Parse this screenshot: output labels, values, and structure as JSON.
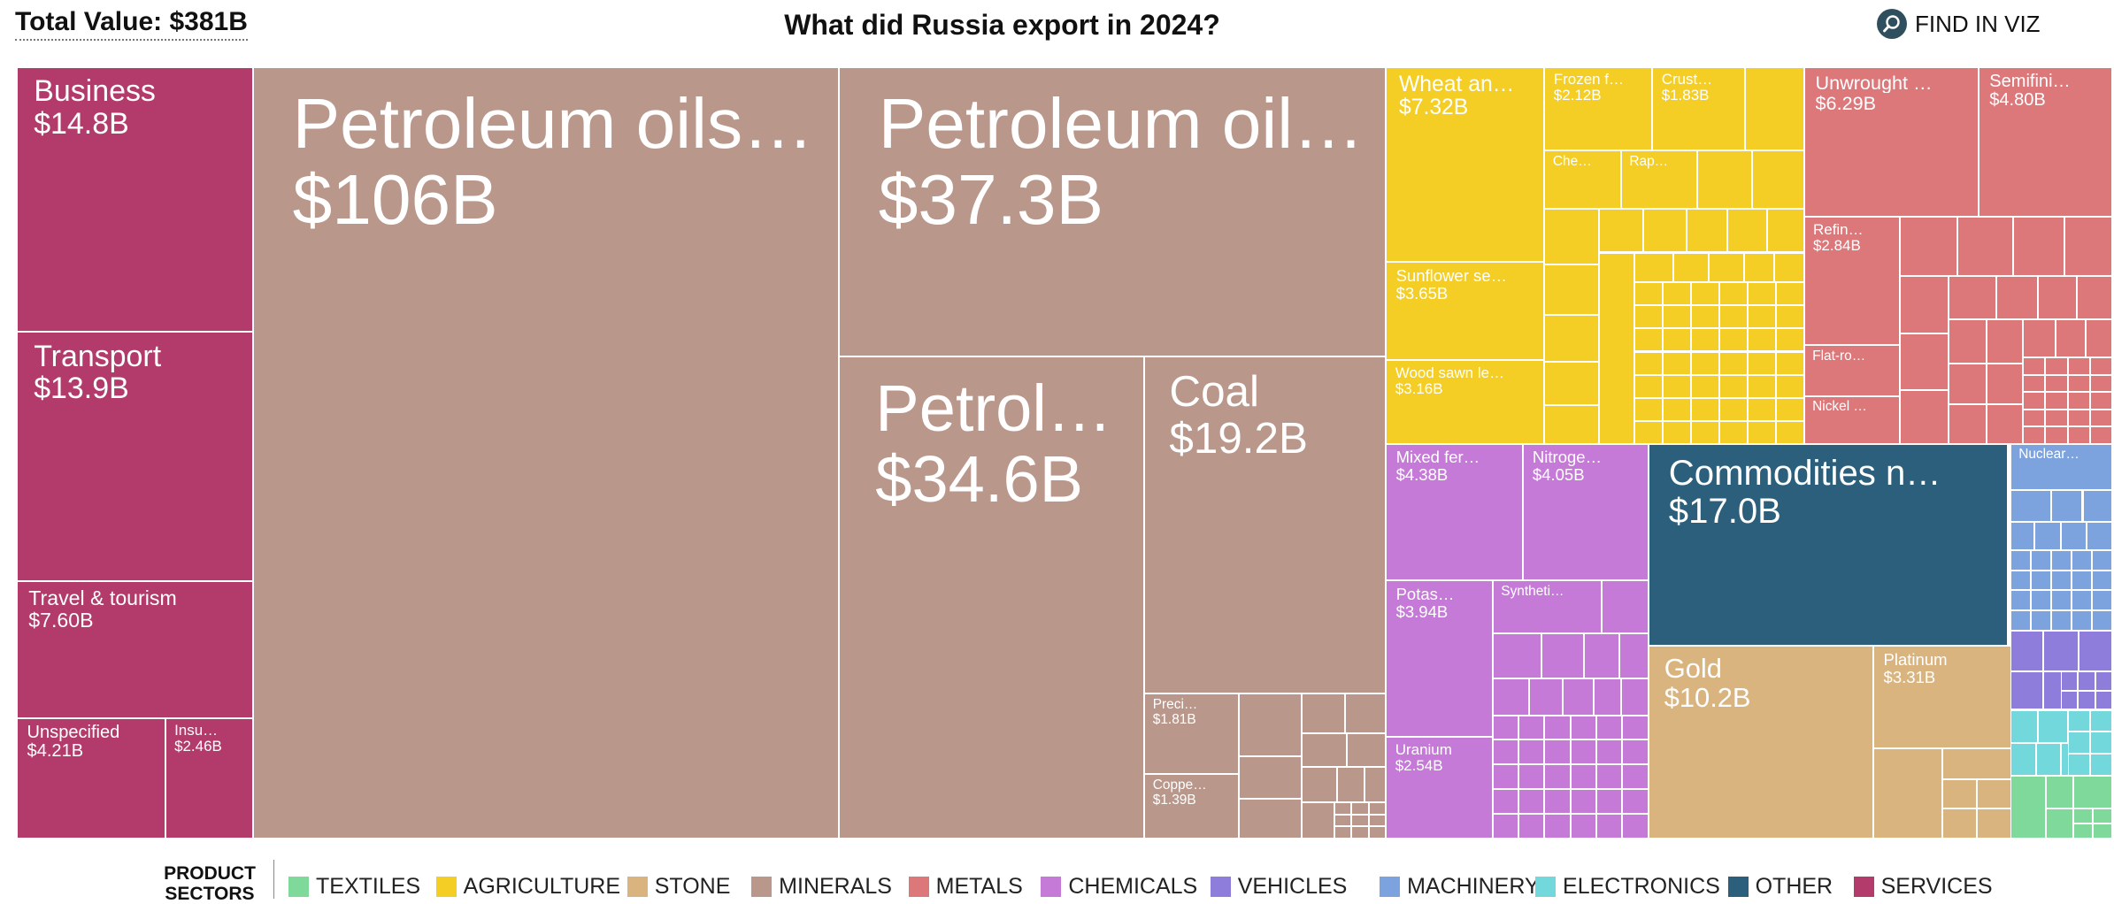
{
  "header": {
    "total_value": "Total Value: $381B",
    "title": "What did Russia export in 2024?",
    "find_in_viz": "FIND IN VIZ",
    "find_icon": "search-icon"
  },
  "legend": {
    "title": "PRODUCT SECTORS",
    "items": [
      {
        "label": "TEXTILES",
        "color": "#7fd99a"
      },
      {
        "label": "AGRICULTURE",
        "color": "#f4ce24"
      },
      {
        "label": "STONE",
        "color": "#d9b47e"
      },
      {
        "label": "MINERALS",
        "color": "#b9978b"
      },
      {
        "label": "METALS",
        "color": "#dc777a"
      },
      {
        "label": "CHEMICALS",
        "color": "#c47ad6"
      },
      {
        "label": "VEHICLES",
        "color": "#8e7ddb"
      },
      {
        "label": "MACHINERY",
        "color": "#7ca3dd"
      },
      {
        "label": "ELECTRONICS",
        "color": "#73d8dc"
      },
      {
        "label": "OTHER",
        "color": "#2b5f7c"
      },
      {
        "label": "SERVICES",
        "color": "#b23b6b"
      }
    ]
  },
  "chart_data": {
    "type": "treemap",
    "title": "What did Russia export in 2024?",
    "total": "$381B",
    "labeled_items": [
      {
        "name": "Business",
        "value": "$14.8B",
        "sector": "SERVICES"
      },
      {
        "name": "Transport",
        "value": "$13.9B",
        "sector": "SERVICES"
      },
      {
        "name": "Travel & tourism",
        "value": "$7.60B",
        "sector": "SERVICES"
      },
      {
        "name": "Unspecified",
        "value": "$4.21B",
        "sector": "SERVICES"
      },
      {
        "name": "Insu…",
        "value": "$2.46B",
        "sector": "SERVICES"
      },
      {
        "name": "Petroleum oils…",
        "value": "$106B",
        "sector": "MINERALS"
      },
      {
        "name": "Petroleum oil…",
        "value": "$37.3B",
        "sector": "MINERALS"
      },
      {
        "name": "Petrol…",
        "value": "$34.6B",
        "sector": "MINERALS"
      },
      {
        "name": "Coal",
        "value": "$19.2B",
        "sector": "MINERALS"
      },
      {
        "name": "Preci…",
        "value": "$1.81B",
        "sector": "MINERALS"
      },
      {
        "name": "Coppe…",
        "value": "$1.39B",
        "sector": "MINERALS"
      },
      {
        "name": "Wheat an…",
        "value": "$7.32B",
        "sector": "AGRICULTURE"
      },
      {
        "name": "Frozen f…",
        "value": "$2.12B",
        "sector": "AGRICULTURE"
      },
      {
        "name": "Crust…",
        "value": "$1.83B",
        "sector": "AGRICULTURE"
      },
      {
        "name": "Che…",
        "value": "",
        "sector": "AGRICULTURE"
      },
      {
        "name": "Rap…",
        "value": "",
        "sector": "AGRICULTURE"
      },
      {
        "name": "Sunflower se…",
        "value": "$3.65B",
        "sector": "AGRICULTURE"
      },
      {
        "name": "Wood sawn le…",
        "value": "$3.16B",
        "sector": "AGRICULTURE"
      },
      {
        "name": "Unwrought …",
        "value": "$6.29B",
        "sector": "METALS"
      },
      {
        "name": "Semifini…",
        "value": "$4.80B",
        "sector": "METALS"
      },
      {
        "name": "Refin…",
        "value": "$2.84B",
        "sector": "METALS"
      },
      {
        "name": "Flat-ro…",
        "value": "",
        "sector": "METALS"
      },
      {
        "name": "Nickel …",
        "value": "",
        "sector": "METALS"
      },
      {
        "name": "Mixed fer…",
        "value": "$4.38B",
        "sector": "CHEMICALS"
      },
      {
        "name": "Nitroge…",
        "value": "$4.05B",
        "sector": "CHEMICALS"
      },
      {
        "name": "Potas…",
        "value": "$3.94B",
        "sector": "CHEMICALS"
      },
      {
        "name": "Syntheti…",
        "value": "",
        "sector": "CHEMICALS"
      },
      {
        "name": "Uranium",
        "value": "$2.54B",
        "sector": "CHEMICALS"
      },
      {
        "name": "Commodities n…",
        "value": "$17.0B",
        "sector": "OTHER"
      },
      {
        "name": "Gold",
        "value": "$10.2B",
        "sector": "STONE"
      },
      {
        "name": "Platinum",
        "value": "$3.31B",
        "sector": "STONE"
      },
      {
        "name": "Nuclear…",
        "value": "",
        "sector": "MACHINERY"
      }
    ]
  }
}
